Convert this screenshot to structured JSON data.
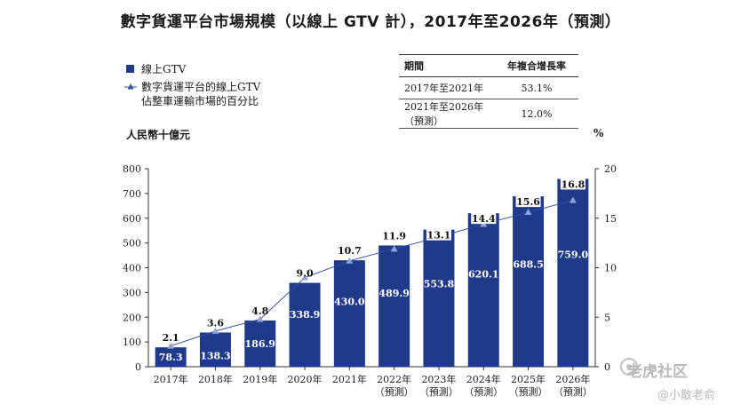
{
  "title": "數字貨運平台市場規模（以線上 GTV 計），2017年至2026年（預測）",
  "legend": {
    "bar": "線上GTV",
    "line_1": "數字貨運平台的線上GTV",
    "line_2": "佔整車運輸市場的百分比"
  },
  "cagr_table": {
    "headers": [
      "期間",
      "年複合增長率"
    ],
    "rows": [
      {
        "period": "2017年至2021年",
        "rate": "53.1%"
      },
      {
        "period": "2021年至2026年（預測）",
        "rate": "12.0%"
      }
    ]
  },
  "units": {
    "left": "人民幣十億元",
    "right": "%"
  },
  "colors": {
    "bar": "#203a8a",
    "line": "#2f4fa6",
    "marker": "#8fa3d6"
  },
  "chart_data": {
    "type": "bar",
    "title": "數字貨運平台市場規模（以線上 GTV 計），2017年至2026年（預測）",
    "ylabel": "人民幣十億元",
    "y2label": "%",
    "ylim": [
      0,
      800
    ],
    "y_ticks": [
      0,
      100,
      200,
      300,
      400,
      500,
      600,
      700,
      800
    ],
    "y2lim": [
      0,
      20
    ],
    "y2_ticks": [
      0,
      5,
      10,
      15,
      20
    ],
    "categories": [
      {
        "year": "2017年",
        "sub": ""
      },
      {
        "year": "2018年",
        "sub": ""
      },
      {
        "year": "2019年",
        "sub": ""
      },
      {
        "year": "2020年",
        "sub": ""
      },
      {
        "year": "2021年",
        "sub": ""
      },
      {
        "year": "2022年",
        "sub": "（預測）"
      },
      {
        "year": "2023年",
        "sub": "（預測）"
      },
      {
        "year": "2024年",
        "sub": "（預測）"
      },
      {
        "year": "2025年",
        "sub": "（預測）"
      },
      {
        "year": "2026年",
        "sub": "（預測）"
      }
    ],
    "series": [
      {
        "name": "線上GTV",
        "type": "bar",
        "axis": "left",
        "values": [
          78.3,
          138.3,
          186.9,
          338.9,
          430.0,
          489.9,
          553.8,
          620.1,
          688.5,
          759.0
        ]
      },
      {
        "name": "數字貨運平台的線上GTV佔整車運輸市場的百分比",
        "type": "line",
        "axis": "right",
        "values": [
          2.1,
          3.6,
          4.8,
          9.0,
          10.7,
          11.9,
          13.1,
          14.4,
          15.6,
          16.8
        ]
      }
    ]
  },
  "watermark": {
    "brand": "老虎社区",
    "user": "@小散老俞"
  }
}
